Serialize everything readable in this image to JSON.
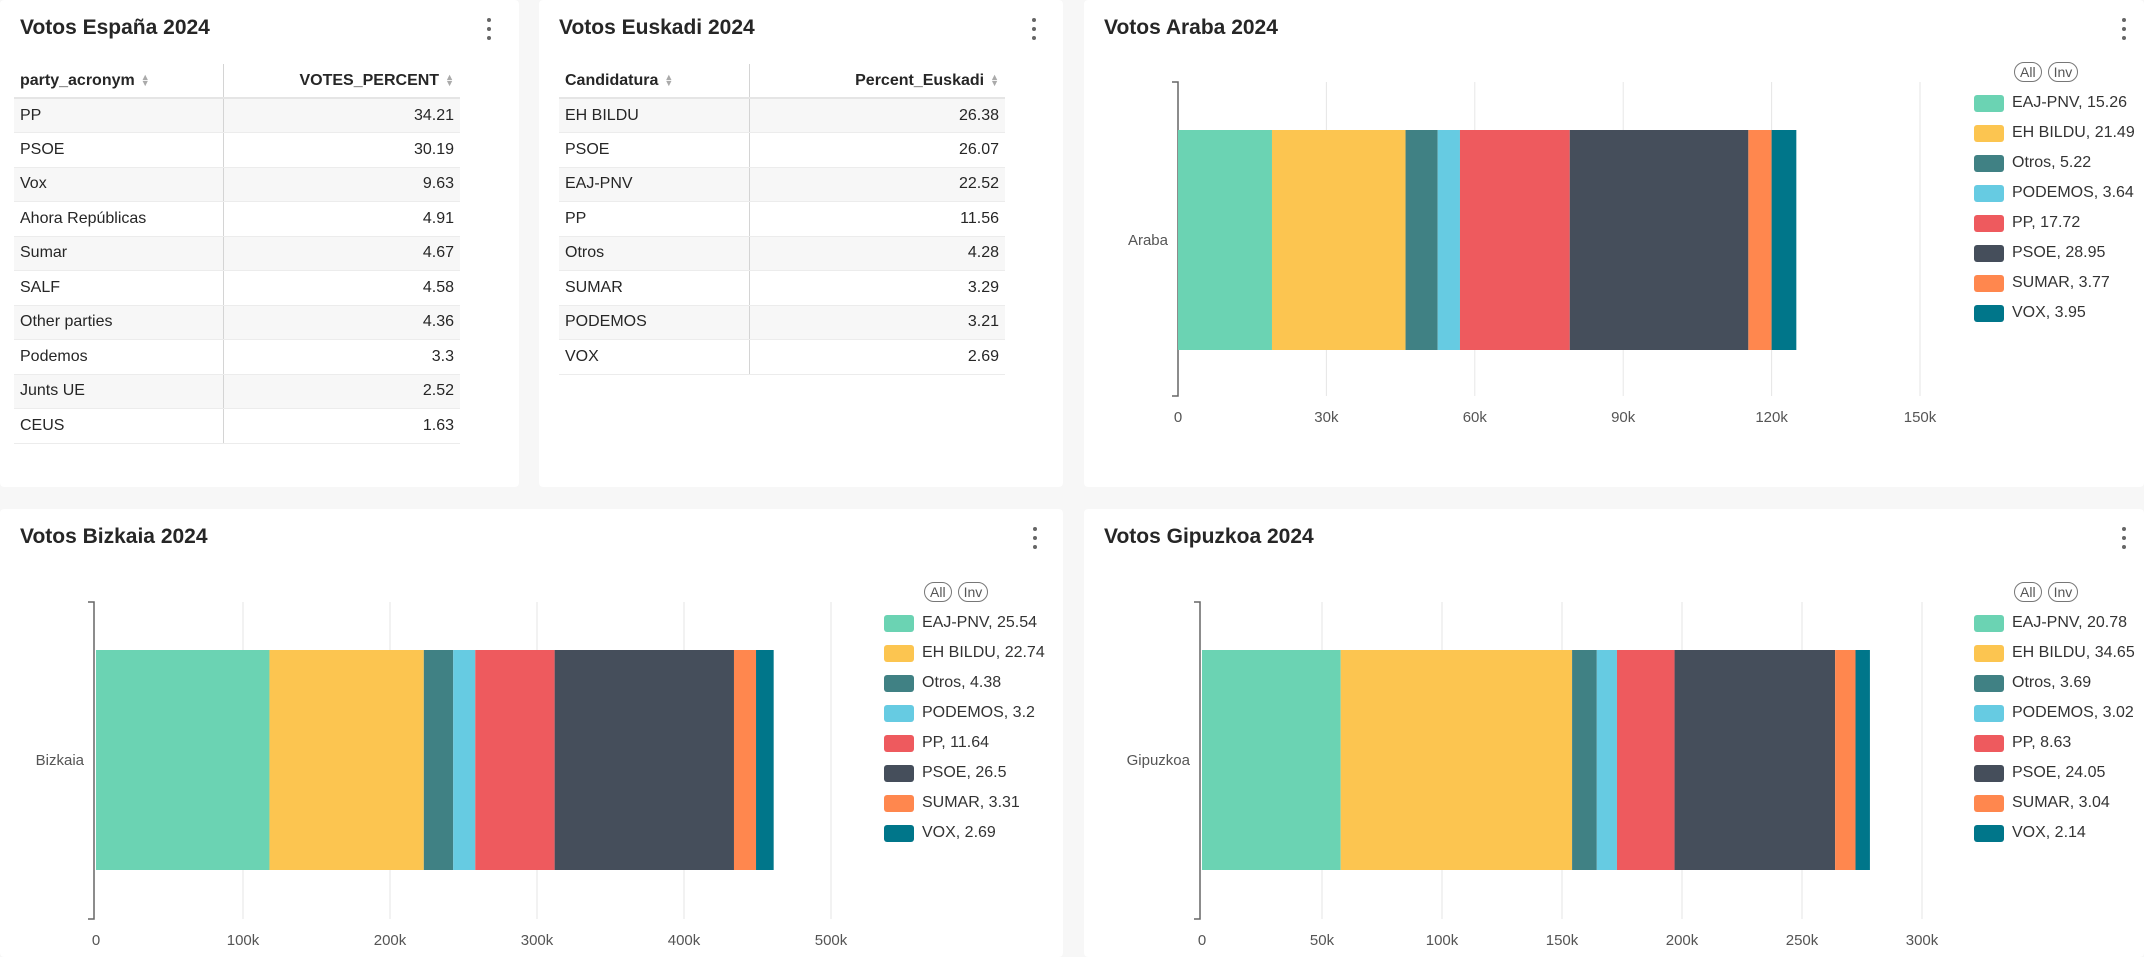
{
  "colors": {
    "EAJ-PNV": "#6bd3b3",
    "EH BILDU": "#fcc550",
    "Otros": "#408184",
    "PODEMOS": "#66cbe2",
    "PP": "#ee5a5e",
    "PSOE": "#454e5b",
    "SUMAR": "#ff874e",
    "VOX": "#00768a"
  },
  "espana": {
    "title": "Votos España 2024",
    "columns": [
      "party_acronym",
      "VOTES_PERCENT"
    ],
    "rows": [
      [
        "PP",
        "34.21"
      ],
      [
        "PSOE",
        "30.19"
      ],
      [
        "Vox",
        "9.63"
      ],
      [
        "Ahora Repúblicas",
        "4.91"
      ],
      [
        "Sumar",
        "4.67"
      ],
      [
        "SALF",
        "4.58"
      ],
      [
        "Other parties",
        "4.36"
      ],
      [
        "Podemos",
        "3.3"
      ],
      [
        "Junts UE",
        "2.52"
      ],
      [
        "CEUS",
        "1.63"
      ]
    ]
  },
  "euskadi": {
    "title": "Votos Euskadi 2024",
    "columns": [
      "Candidatura",
      "Percent_Euskadi"
    ],
    "rows": [
      [
        "EH BILDU",
        "26.38"
      ],
      [
        "PSOE",
        "26.07"
      ],
      [
        "EAJ-PNV",
        "22.52"
      ],
      [
        "PP",
        "11.56"
      ],
      [
        "Otros",
        "4.28"
      ],
      [
        "SUMAR",
        "3.29"
      ],
      [
        "PODEMOS",
        "3.21"
      ],
      [
        "VOX",
        "2.69"
      ]
    ]
  },
  "legend_buttons": {
    "all": "All",
    "inv": "Inv"
  },
  "chart_data": [
    {
      "type": "bar",
      "orientation": "horizontal",
      "stacked": true,
      "title": "Votos Araba 2024",
      "categories": [
        "Araba"
      ],
      "xlim": [
        0,
        150000
      ],
      "xticks": [
        "0",
        "30k",
        "60k",
        "90k",
        "120k",
        "150k"
      ],
      "grid": true,
      "legend_position": "right",
      "series": [
        {
          "name": "EAJ-PNV",
          "legend": "EAJ-PNV, 15.26",
          "values": [
            19000
          ]
        },
        {
          "name": "EH BILDU",
          "legend": "EH BILDU, 21.49",
          "values": [
            27000
          ]
        },
        {
          "name": "Otros",
          "legend": "Otros, 5.22",
          "values": [
            6500
          ]
        },
        {
          "name": "PODEMOS",
          "legend": "PODEMOS, 3.64",
          "values": [
            4500
          ]
        },
        {
          "name": "PP",
          "legend": "PP, 17.72",
          "values": [
            22200
          ]
        },
        {
          "name": "PSOE",
          "legend": "PSOE, 28.95",
          "values": [
            36100
          ]
        },
        {
          "name": "SUMAR",
          "legend": "SUMAR, 3.77",
          "values": [
            4700
          ]
        },
        {
          "name": "VOX",
          "legend": "VOX, 3.95",
          "values": [
            5000
          ]
        }
      ]
    },
    {
      "type": "bar",
      "orientation": "horizontal",
      "stacked": true,
      "title": "Votos Bizkaia 2024",
      "categories": [
        "Bizkaia"
      ],
      "xlim": [
        0,
        500000
      ],
      "xticks": [
        "0",
        "100k",
        "200k",
        "300k",
        "400k",
        "500k"
      ],
      "grid": true,
      "legend_position": "right",
      "series": [
        {
          "name": "EAJ-PNV",
          "legend": "EAJ-PNV, 25.54",
          "values": [
            118000
          ]
        },
        {
          "name": "EH BILDU",
          "legend": "EH BILDU, 22.74",
          "values": [
            105000
          ]
        },
        {
          "name": "Otros",
          "legend": "Otros, 4.38",
          "values": [
            20000
          ]
        },
        {
          "name": "PODEMOS",
          "legend": "PODEMOS, 3.2",
          "values": [
            15000
          ]
        },
        {
          "name": "PP",
          "legend": "PP, 11.64",
          "values": [
            54000
          ]
        },
        {
          "name": "PSOE",
          "legend": "PSOE, 26.5",
          "values": [
            122000
          ]
        },
        {
          "name": "SUMAR",
          "legend": "SUMAR, 3.31",
          "values": [
            15000
          ]
        },
        {
          "name": "VOX",
          "legend": "VOX, 2.69",
          "values": [
            12000
          ]
        }
      ]
    },
    {
      "type": "bar",
      "orientation": "horizontal",
      "stacked": true,
      "title": "Votos Gipuzkoa 2024",
      "categories": [
        "Gipuzkoa"
      ],
      "xlim": [
        0,
        300000
      ],
      "xticks": [
        "0",
        "50k",
        "100k",
        "150k",
        "200k",
        "250k",
        "300k"
      ],
      "grid": true,
      "legend_position": "right",
      "series": [
        {
          "name": "EAJ-PNV",
          "legend": "EAJ-PNV, 20.78",
          "values": [
            57800
          ]
        },
        {
          "name": "EH BILDU",
          "legend": "EH BILDU, 34.65",
          "values": [
            96400
          ]
        },
        {
          "name": "Otros",
          "legend": "Otros, 3.69",
          "values": [
            10300
          ]
        },
        {
          "name": "PODEMOS",
          "legend": "PODEMOS, 3.02",
          "values": [
            8400
          ]
        },
        {
          "name": "PP",
          "legend": "PP, 8.63",
          "values": [
            24000
          ]
        },
        {
          "name": "PSOE",
          "legend": "PSOE, 24.05",
          "values": [
            66900
          ]
        },
        {
          "name": "SUMAR",
          "legend": "SUMAR, 3.04",
          "values": [
            8500
          ]
        },
        {
          "name": "VOX",
          "legend": "VOX, 2.14",
          "values": [
            6000
          ]
        }
      ]
    }
  ]
}
